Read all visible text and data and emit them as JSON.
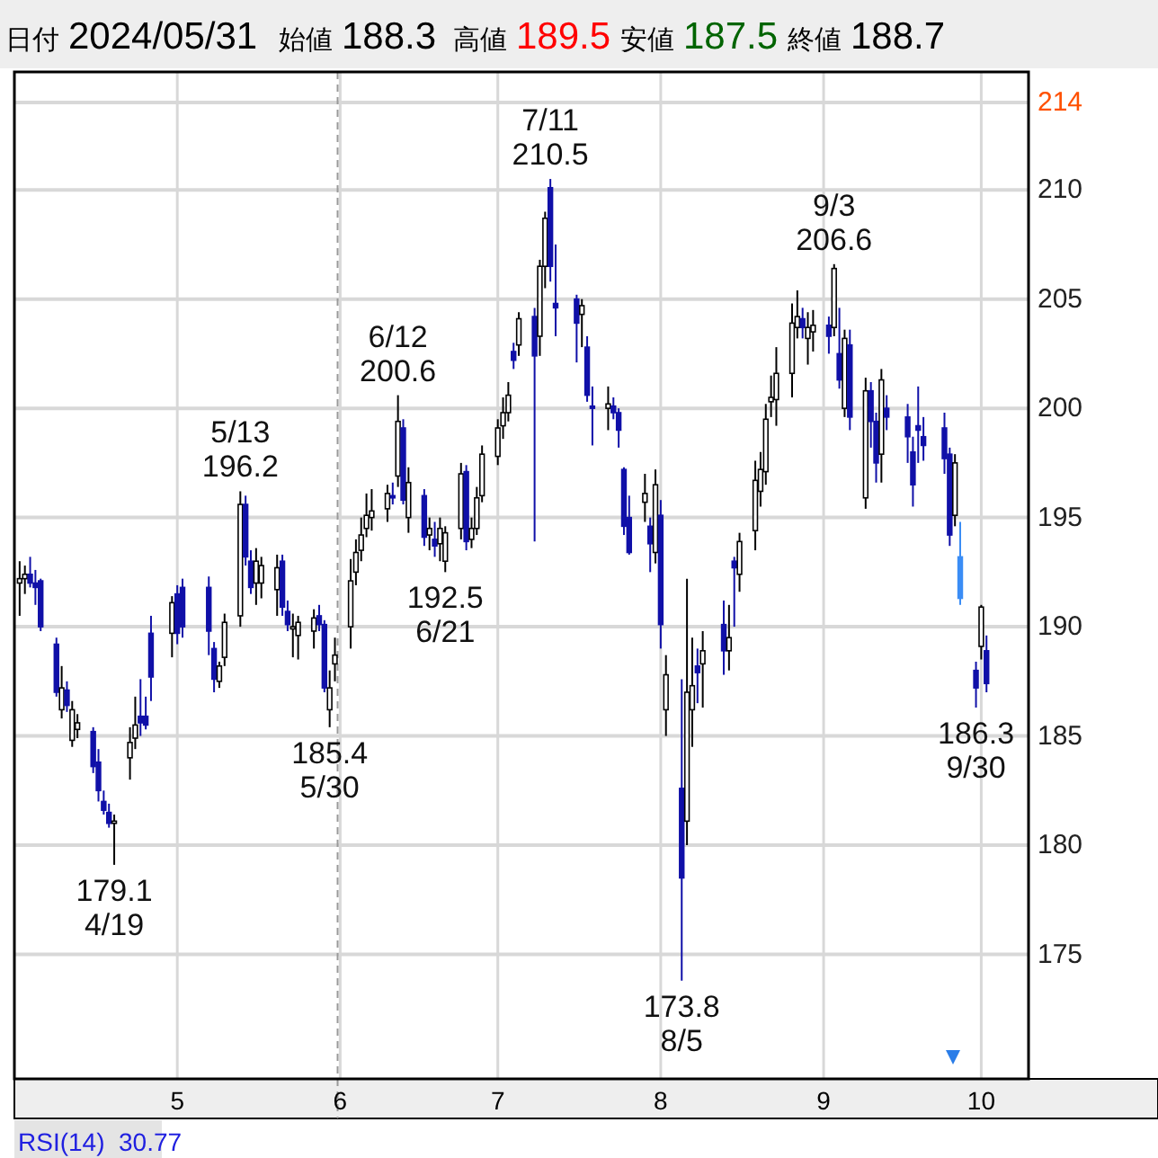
{
  "chart_data": {
    "type": "candlestick",
    "x": [
      "2024-04-01",
      "2024-04-02",
      "2024-04-03",
      "2024-04-04",
      "2024-04-05",
      "2024-04-08",
      "2024-04-09",
      "2024-04-10",
      "2024-04-11",
      "2024-04-12",
      "2024-04-15",
      "2024-04-16",
      "2024-04-17",
      "2024-04-18",
      "2024-04-19",
      "2024-04-22",
      "2024-04-23",
      "2024-04-24",
      "2024-04-25",
      "2024-04-26",
      "2024-04-30",
      "2024-05-01",
      "2024-05-02",
      "2024-05-07",
      "2024-05-08",
      "2024-05-09",
      "2024-05-10",
      "2024-05-13",
      "2024-05-14",
      "2024-05-15",
      "2024-05-16",
      "2024-05-17",
      "2024-05-20",
      "2024-05-21",
      "2024-05-22",
      "2024-05-23",
      "2024-05-24",
      "2024-05-27",
      "2024-05-28",
      "2024-05-29",
      "2024-05-30",
      "2024-05-31",
      "2024-06-03",
      "2024-06-04",
      "2024-06-05",
      "2024-06-06",
      "2024-06-07",
      "2024-06-10",
      "2024-06-11",
      "2024-06-12",
      "2024-06-13",
      "2024-06-14",
      "2024-06-17",
      "2024-06-18",
      "2024-06-19",
      "2024-06-20",
      "2024-06-21",
      "2024-06-24",
      "2024-06-25",
      "2024-06-26",
      "2024-06-27",
      "2024-06-28",
      "2024-07-01",
      "2024-07-02",
      "2024-07-03",
      "2024-07-04",
      "2024-07-05",
      "2024-07-08",
      "2024-07-09",
      "2024-07-10",
      "2024-07-11",
      "2024-07-12",
      "2024-07-16",
      "2024-07-17",
      "2024-07-18",
      "2024-07-19",
      "2024-07-22",
      "2024-07-23",
      "2024-07-24",
      "2024-07-25",
      "2024-07-26",
      "2024-07-29",
      "2024-07-30",
      "2024-07-31",
      "2024-08-01",
      "2024-08-02",
      "2024-08-05",
      "2024-08-06",
      "2024-08-07",
      "2024-08-08",
      "2024-08-09",
      "2024-08-13",
      "2024-08-14",
      "2024-08-15",
      "2024-08-16",
      "2024-08-19",
      "2024-08-20",
      "2024-08-21",
      "2024-08-22",
      "2024-08-23",
      "2024-08-26",
      "2024-08-27",
      "2024-08-28",
      "2024-08-29",
      "2024-08-30",
      "2024-09-02",
      "2024-09-03",
      "2024-09-04",
      "2024-09-05",
      "2024-09-06",
      "2024-09-09",
      "2024-09-10",
      "2024-09-11",
      "2024-09-12",
      "2024-09-13",
      "2024-09-17",
      "2024-09-18",
      "2024-09-19",
      "2024-09-20",
      "2024-09-24",
      "2024-09-25",
      "2024-09-26",
      "2024-09-27",
      "2024-09-30",
      "2024-10-01",
      "2024-10-02"
    ],
    "ohlc": [
      [
        192.0,
        193.0,
        190.5,
        192.2
      ],
      [
        192.2,
        192.8,
        191.5,
        192.4
      ],
      [
        192.4,
        193.2,
        191.8,
        192.0
      ],
      [
        192.0,
        192.6,
        191.0,
        191.8
      ],
      [
        192.1,
        192.2,
        189.8,
        190.0
      ],
      [
        189.2,
        189.5,
        186.8,
        187.0
      ],
      [
        186.2,
        188.2,
        185.8,
        187.2
      ],
      [
        187.1,
        187.5,
        186.1,
        186.4
      ],
      [
        184.8,
        186.6,
        184.5,
        186.2
      ],
      [
        185.3,
        186.0,
        184.9,
        185.6
      ],
      [
        185.2,
        185.4,
        183.3,
        183.6
      ],
      [
        183.8,
        184.4,
        182.0,
        182.5
      ],
      [
        182.0,
        182.5,
        181.4,
        181.6
      ],
      [
        181.5,
        181.9,
        180.8,
        181.0
      ],
      [
        181.0,
        181.4,
        179.1,
        181.1
      ],
      [
        184.0,
        185.4,
        183.0,
        184.7
      ],
      [
        184.9,
        186.8,
        184.4,
        185.5
      ],
      [
        185.9,
        187.6,
        185.0,
        185.6
      ],
      [
        185.9,
        186.8,
        185.3,
        185.5
      ],
      [
        189.7,
        190.5,
        186.6,
        187.7
      ],
      [
        189.7,
        191.4,
        188.6,
        191.1
      ],
      [
        191.5,
        191.9,
        189.2,
        189.7
      ],
      [
        191.8,
        192.2,
        189.5,
        190.0
      ],
      [
        191.8,
        192.3,
        188.7,
        189.8
      ],
      [
        189.0,
        189.3,
        187.0,
        187.6
      ],
      [
        187.5,
        188.4,
        187.2,
        188.2
      ],
      [
        188.6,
        190.6,
        188.2,
        190.2
      ],
      [
        190.5,
        196.2,
        190.0,
        195.6
      ],
      [
        195.6,
        196.0,
        192.8,
        193.2
      ],
      [
        193.0,
        193.5,
        191.5,
        191.8
      ],
      [
        192.0,
        193.6,
        191.0,
        193.0
      ],
      [
        192.0,
        193.2,
        191.3,
        192.8
      ],
      [
        191.7,
        193.3,
        190.5,
        192.7
      ],
      [
        193.0,
        193.3,
        190.5,
        190.9
      ],
      [
        190.7,
        191.2,
        189.8,
        190.1
      ],
      [
        189.9,
        190.6,
        188.6,
        190.0
      ],
      [
        189.6,
        190.5,
        188.5,
        190.2
      ],
      [
        189.8,
        190.8,
        189.0,
        190.4
      ],
      [
        190.5,
        191.0,
        189.8,
        190.1
      ],
      [
        190.1,
        190.3,
        187.0,
        187.2
      ],
      [
        186.2,
        188.0,
        185.4,
        187.2
      ],
      [
        188.3,
        189.5,
        187.5,
        188.7
      ],
      [
        190.0,
        193.1,
        189.0,
        192.1
      ],
      [
        192.5,
        194.0,
        191.9,
        193.4
      ],
      [
        193.5,
        195.0,
        193.0,
        194.2
      ],
      [
        194.5,
        196.1,
        194.1,
        195.1
      ],
      [
        195.0,
        196.3,
        194.4,
        195.3
      ],
      [
        195.4,
        196.5,
        194.8,
        196.1
      ],
      [
        196.0,
        196.6,
        195.6,
        195.9
      ],
      [
        196.9,
        200.6,
        196.4,
        199.4
      ],
      [
        199.1,
        199.5,
        195.6,
        195.8
      ],
      [
        195.0,
        197.3,
        194.3,
        196.6
      ],
      [
        196.0,
        196.3,
        193.7,
        194.1
      ],
      [
        194.2,
        195.0,
        193.5,
        194.5
      ],
      [
        194.0,
        194.8,
        193.2,
        193.7
      ],
      [
        193.8,
        195.0,
        193.0,
        194.5
      ],
      [
        193.0,
        194.6,
        192.5,
        194.3
      ],
      [
        194.5,
        197.5,
        194.0,
        197.0
      ],
      [
        197.1,
        197.4,
        193.5,
        193.9
      ],
      [
        194.0,
        195.0,
        193.6,
        194.5
      ],
      [
        194.5,
        196.4,
        194.2,
        195.9
      ],
      [
        196.0,
        198.3,
        195.7,
        197.9
      ],
      [
        197.8,
        199.5,
        197.4,
        199.1
      ],
      [
        199.2,
        200.5,
        198.6,
        199.8
      ],
      [
        199.8,
        201.2,
        199.4,
        200.6
      ],
      [
        202.6,
        203.0,
        201.8,
        202.2
      ],
      [
        202.9,
        204.4,
        202.4,
        204.1
      ],
      [
        204.2,
        204.6,
        193.9,
        202.4
      ],
      [
        203.3,
        206.8,
        202.4,
        206.5
      ],
      [
        206.5,
        209.0,
        205.5,
        208.7
      ],
      [
        210.1,
        210.5,
        205.8,
        206.5
      ],
      [
        204.8,
        207.5,
        203.3,
        204.6
      ],
      [
        205.0,
        205.2,
        202.1,
        203.9
      ],
      [
        204.3,
        205.0,
        202.8,
        204.7
      ],
      [
        202.8,
        203.3,
        200.3,
        200.6
      ],
      [
        200.1,
        201.0,
        198.3,
        200.0
      ],
      [
        200.0,
        201.0,
        199.0,
        200.2
      ],
      [
        200.1,
        200.5,
        199.5,
        199.8
      ],
      [
        199.8,
        200.0,
        198.2,
        199.0
      ],
      [
        197.2,
        197.3,
        194.2,
        194.6
      ],
      [
        195.0,
        196.0,
        193.3,
        193.4
      ],
      [
        195.7,
        197.0,
        194.8,
        196.1
      ],
      [
        194.6,
        195.0,
        192.5,
        193.8
      ],
      [
        193.4,
        197.2,
        192.9,
        196.5
      ],
      [
        195.1,
        195.8,
        189.0,
        190.1
      ],
      [
        186.2,
        188.7,
        185.0,
        187.8
      ],
      [
        182.6,
        187.6,
        173.8,
        178.5
      ],
      [
        181.1,
        192.2,
        180.0,
        187.0
      ],
      [
        186.2,
        189.5,
        184.5,
        187.3
      ],
      [
        188.2,
        189.0,
        186.5,
        187.9
      ],
      [
        188.3,
        189.8,
        186.3,
        188.9
      ],
      [
        190.1,
        191.2,
        187.8,
        188.9
      ],
      [
        188.9,
        191.0,
        188.0,
        189.5
      ],
      [
        193.0,
        193.2,
        190.0,
        192.7
      ],
      [
        192.4,
        194.3,
        191.6,
        193.9
      ],
      [
        194.4,
        197.6,
        193.5,
        196.7
      ],
      [
        196.2,
        198.0,
        195.5,
        197.2
      ],
      [
        197.1,
        200.2,
        196.5,
        199.5
      ],
      [
        200.3,
        201.5,
        199.6,
        200.5
      ],
      [
        200.4,
        202.8,
        199.2,
        201.6
      ],
      [
        201.6,
        204.8,
        200.5,
        203.9
      ],
      [
        203.7,
        205.4,
        203.2,
        204.2
      ],
      [
        204.1,
        204.6,
        203.2,
        203.7
      ],
      [
        203.2,
        204.4,
        202.0,
        203.7
      ],
      [
        203.5,
        204.5,
        202.6,
        203.8
      ],
      [
        203.8,
        204.2,
        202.5,
        203.3
      ],
      [
        203.7,
        206.6,
        203.3,
        206.4
      ],
      [
        202.5,
        204.6,
        200.9,
        201.3
      ],
      [
        200.0,
        203.6,
        199.6,
        203.2
      ],
      [
        202.9,
        203.6,
        199.0,
        199.6
      ],
      [
        195.9,
        201.4,
        195.4,
        200.8
      ],
      [
        200.8,
        201.2,
        198.2,
        199.4
      ],
      [
        199.4,
        199.8,
        196.6,
        197.5
      ],
      [
        197.9,
        201.8,
        196.6,
        201.3
      ],
      [
        200.0,
        200.6,
        199.0,
        199.6
      ],
      [
        199.6,
        200.2,
        197.5,
        198.7
      ],
      [
        198.0,
        198.7,
        195.5,
        196.5
      ],
      [
        199.2,
        201.0,
        197.5,
        199.0
      ],
      [
        198.7,
        199.6,
        197.6,
        198.3
      ],
      [
        199.1,
        199.8,
        197.0,
        197.7
      ],
      [
        197.9,
        198.2,
        193.7,
        194.2
      ],
      [
        195.1,
        197.9,
        194.6,
        197.5
      ],
      [
        193.2,
        194.8,
        191.0,
        191.3
      ],
      [
        188.0,
        188.4,
        186.3,
        187.2
      ],
      [
        189.1,
        191.0,
        188.5,
        190.9
      ],
      [
        188.9,
        189.6,
        187.0,
        187.4
      ]
    ],
    "colors": [
      "#ffffff",
      "#ffffff",
      "#1010a8",
      "#1010a8",
      "#1010a8",
      "#1010a8",
      "#ffffff",
      "#1010a8",
      "#ffffff",
      "#ffffff",
      "#1010a8",
      "#1010a8",
      "#1010a8",
      "#1010a8",
      "#ffffff",
      "#ffffff",
      "#ffffff",
      "#1010a8",
      "#1010a8",
      "#1010a8",
      "#ffffff",
      "#1010a8",
      "#1010a8",
      "#1010a8",
      "#1010a8",
      "#ffffff",
      "#ffffff",
      "#ffffff",
      "#1010a8",
      "#1010a8",
      "#ffffff",
      "#ffffff",
      "#ffffff",
      "#1010a8",
      "#1010a8",
      "#ffffff",
      "#ffffff",
      "#ffffff",
      "#1010a8",
      "#1010a8",
      "#ffffff",
      "#ffffff",
      "#ffffff",
      "#ffffff",
      "#ffffff",
      "#ffffff",
      "#ffffff",
      "#ffffff",
      "#1010a8",
      "#ffffff",
      "#1010a8",
      "#ffffff",
      "#1010a8",
      "#ffffff",
      "#1010a8",
      "#ffffff",
      "#ffffff",
      "#ffffff",
      "#1010a8",
      "#ffffff",
      "#ffffff",
      "#ffffff",
      "#ffffff",
      "#ffffff",
      "#ffffff",
      "#1010a8",
      "#ffffff",
      "#1010a8",
      "#ffffff",
      "#ffffff",
      "#1010a8",
      "#1010a8",
      "#1010a8",
      "#ffffff",
      "#1010a8",
      "#1010a8",
      "#ffffff",
      "#1010a8",
      "#1010a8",
      "#1010a8",
      "#1010a8",
      "#ffffff",
      "#1010a8",
      "#ffffff",
      "#1010a8",
      "#ffffff",
      "#1010a8",
      "#ffffff",
      "#ffffff",
      "#1010a8",
      "#ffffff",
      "#1010a8",
      "#ffffff",
      "#1010a8",
      "#ffffff",
      "#ffffff",
      "#ffffff",
      "#ffffff",
      "#ffffff",
      "#ffffff",
      "#ffffff",
      "#ffffff",
      "#1010a8",
      "#ffffff",
      "#ffffff",
      "#1010a8",
      "#ffffff",
      "#1010a8",
      "#ffffff",
      "#1010a8",
      "#ffffff",
      "#1010a8",
      "#1010a8",
      "#ffffff",
      "#1010a8",
      "#1010a8",
      "#1010a8",
      "#1010a8",
      "#1010a8",
      "#1010a8",
      "#1010a8",
      "#ffffff",
      "#3b8df5",
      "#1010a8",
      "#ffffff",
      "#1010a8"
    ],
    "xlim": [
      "2024-03-31",
      "2024-10-10"
    ],
    "ylim": [
      169.3,
      215.4
    ],
    "yticks": [
      175,
      180,
      185,
      190,
      195,
      200,
      205,
      210,
      214
    ],
    "xticks": [
      {
        "value": "2024-05-01",
        "label": "5"
      },
      {
        "value": "2024-06-01",
        "label": "6"
      },
      {
        "value": "2024-07-01",
        "label": "7"
      },
      {
        "value": "2024-08-01",
        "label": "8"
      },
      {
        "value": "2024-09-01",
        "label": "9"
      },
      {
        "value": "2024-10-01",
        "label": "10"
      }
    ],
    "grid": true,
    "ref_lines": [
      {
        "axis": "x",
        "value": "2024-05-31",
        "color": "#999999",
        "line_style": "dashed"
      }
    ],
    "annotations": [
      "日付 2024/05/31",
      "始値 188.3",
      "高値 189.5",
      "安値 187.5",
      "終値 188.7",
      "RSI(14)  30.77",
      {
        "text": "179.1\n4/19",
        "x": "2024-04-19",
        "y": 179.1
      },
      {
        "text": "5/13\n196.2",
        "x": "2024-05-13",
        "y": 196.2
      },
      {
        "text": "185.4\n5/30",
        "x": "2024-05-30",
        "y": 185.4
      },
      {
        "text": "6/12\n200.6",
        "x": "2024-06-12",
        "y": 200.6
      },
      {
        "text": "192.5\n6/21",
        "x": "2024-06-21",
        "y": 192.5
      },
      {
        "text": "7/11\n210.5",
        "x": "2024-07-11",
        "y": 210.5
      },
      {
        "text": "173.8\n8/5",
        "x": "2024-08-05",
        "y": 173.8
      },
      {
        "text": "9/3\n206.6",
        "x": "2024-09-03",
        "y": 206.6
      },
      {
        "text": "186.3\n9/30",
        "x": "2024-09-30",
        "y": 186.3
      }
    ]
  }
}
